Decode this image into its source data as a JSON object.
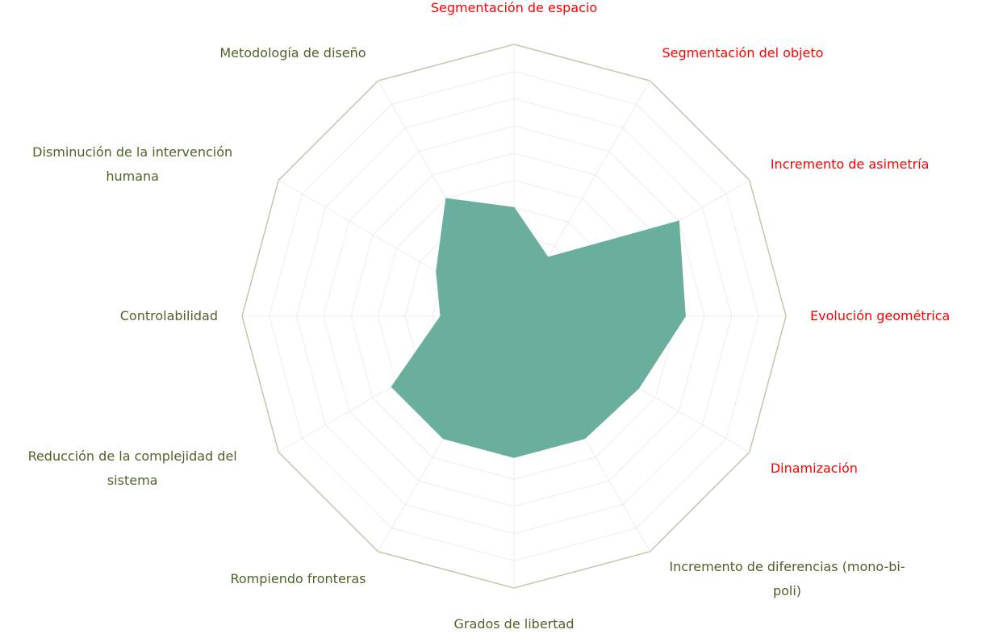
{
  "chart_data": {
    "type": "radar",
    "categories": [
      "Segmentación de espacio",
      "Segmentación del objeto",
      "Incremento de asimetría",
      "Evolución geométrica",
      "Dinamización",
      "Incremento de diferencias (mono-bi-poli)",
      "Grados de libertad",
      "Rompiendo fronteras",
      "Reducción de la complejidad del  sistema",
      "Controlabilidad",
      "Disminución de la intervención humana",
      "Metodología de diseño"
    ],
    "label_colors": [
      "#ff0000",
      "#ff0000",
      "#ff0000",
      "#ff0000",
      "#ff0000",
      "#4f6228",
      "#4f6228",
      "#4f6228",
      "#4f6228",
      "#4f6228",
      "#4f6228",
      "#4f6228"
    ],
    "series": [
      {
        "color": "#6aae9d",
        "values": [
          4,
          2.5,
          7,
          6.3,
          5.3,
          5.2,
          5.2,
          5.2,
          5.2,
          2.7,
          3.3,
          5
        ]
      }
    ],
    "ylim": [
      0,
      10
    ],
    "yticks": [
      1,
      2,
      3,
      4,
      5,
      6,
      7,
      8,
      9,
      10
    ],
    "grid": true
  }
}
